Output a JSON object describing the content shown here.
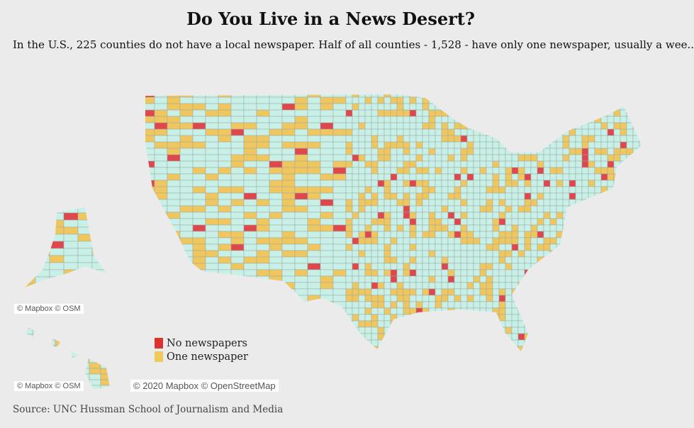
{
  "title": "Do You Live in a News Desert?",
  "subtitle": "In the U.S., 225 counties do not have a local newspaper. Half of all counties - 1,528 - have only one newspaper, usually a wee..",
  "legend": [
    {
      "label": "No newspapers",
      "color": "#d9322f"
    },
    {
      "label": "One newspaper",
      "color": "#f0c85e"
    }
  ],
  "colors": {
    "none": "#e0474c",
    "one": "#f0c75e",
    "multiple": "#c8f0e6",
    "border": "#9aa8a4"
  },
  "attribution": {
    "alaska": "© Mapbox © OSM",
    "hawaii": "© Mapbox © OSM",
    "main": "© 2020 Mapbox © OpenStreetMap"
  },
  "source": "Source: UNC Hussman School of Journalism and Media"
}
